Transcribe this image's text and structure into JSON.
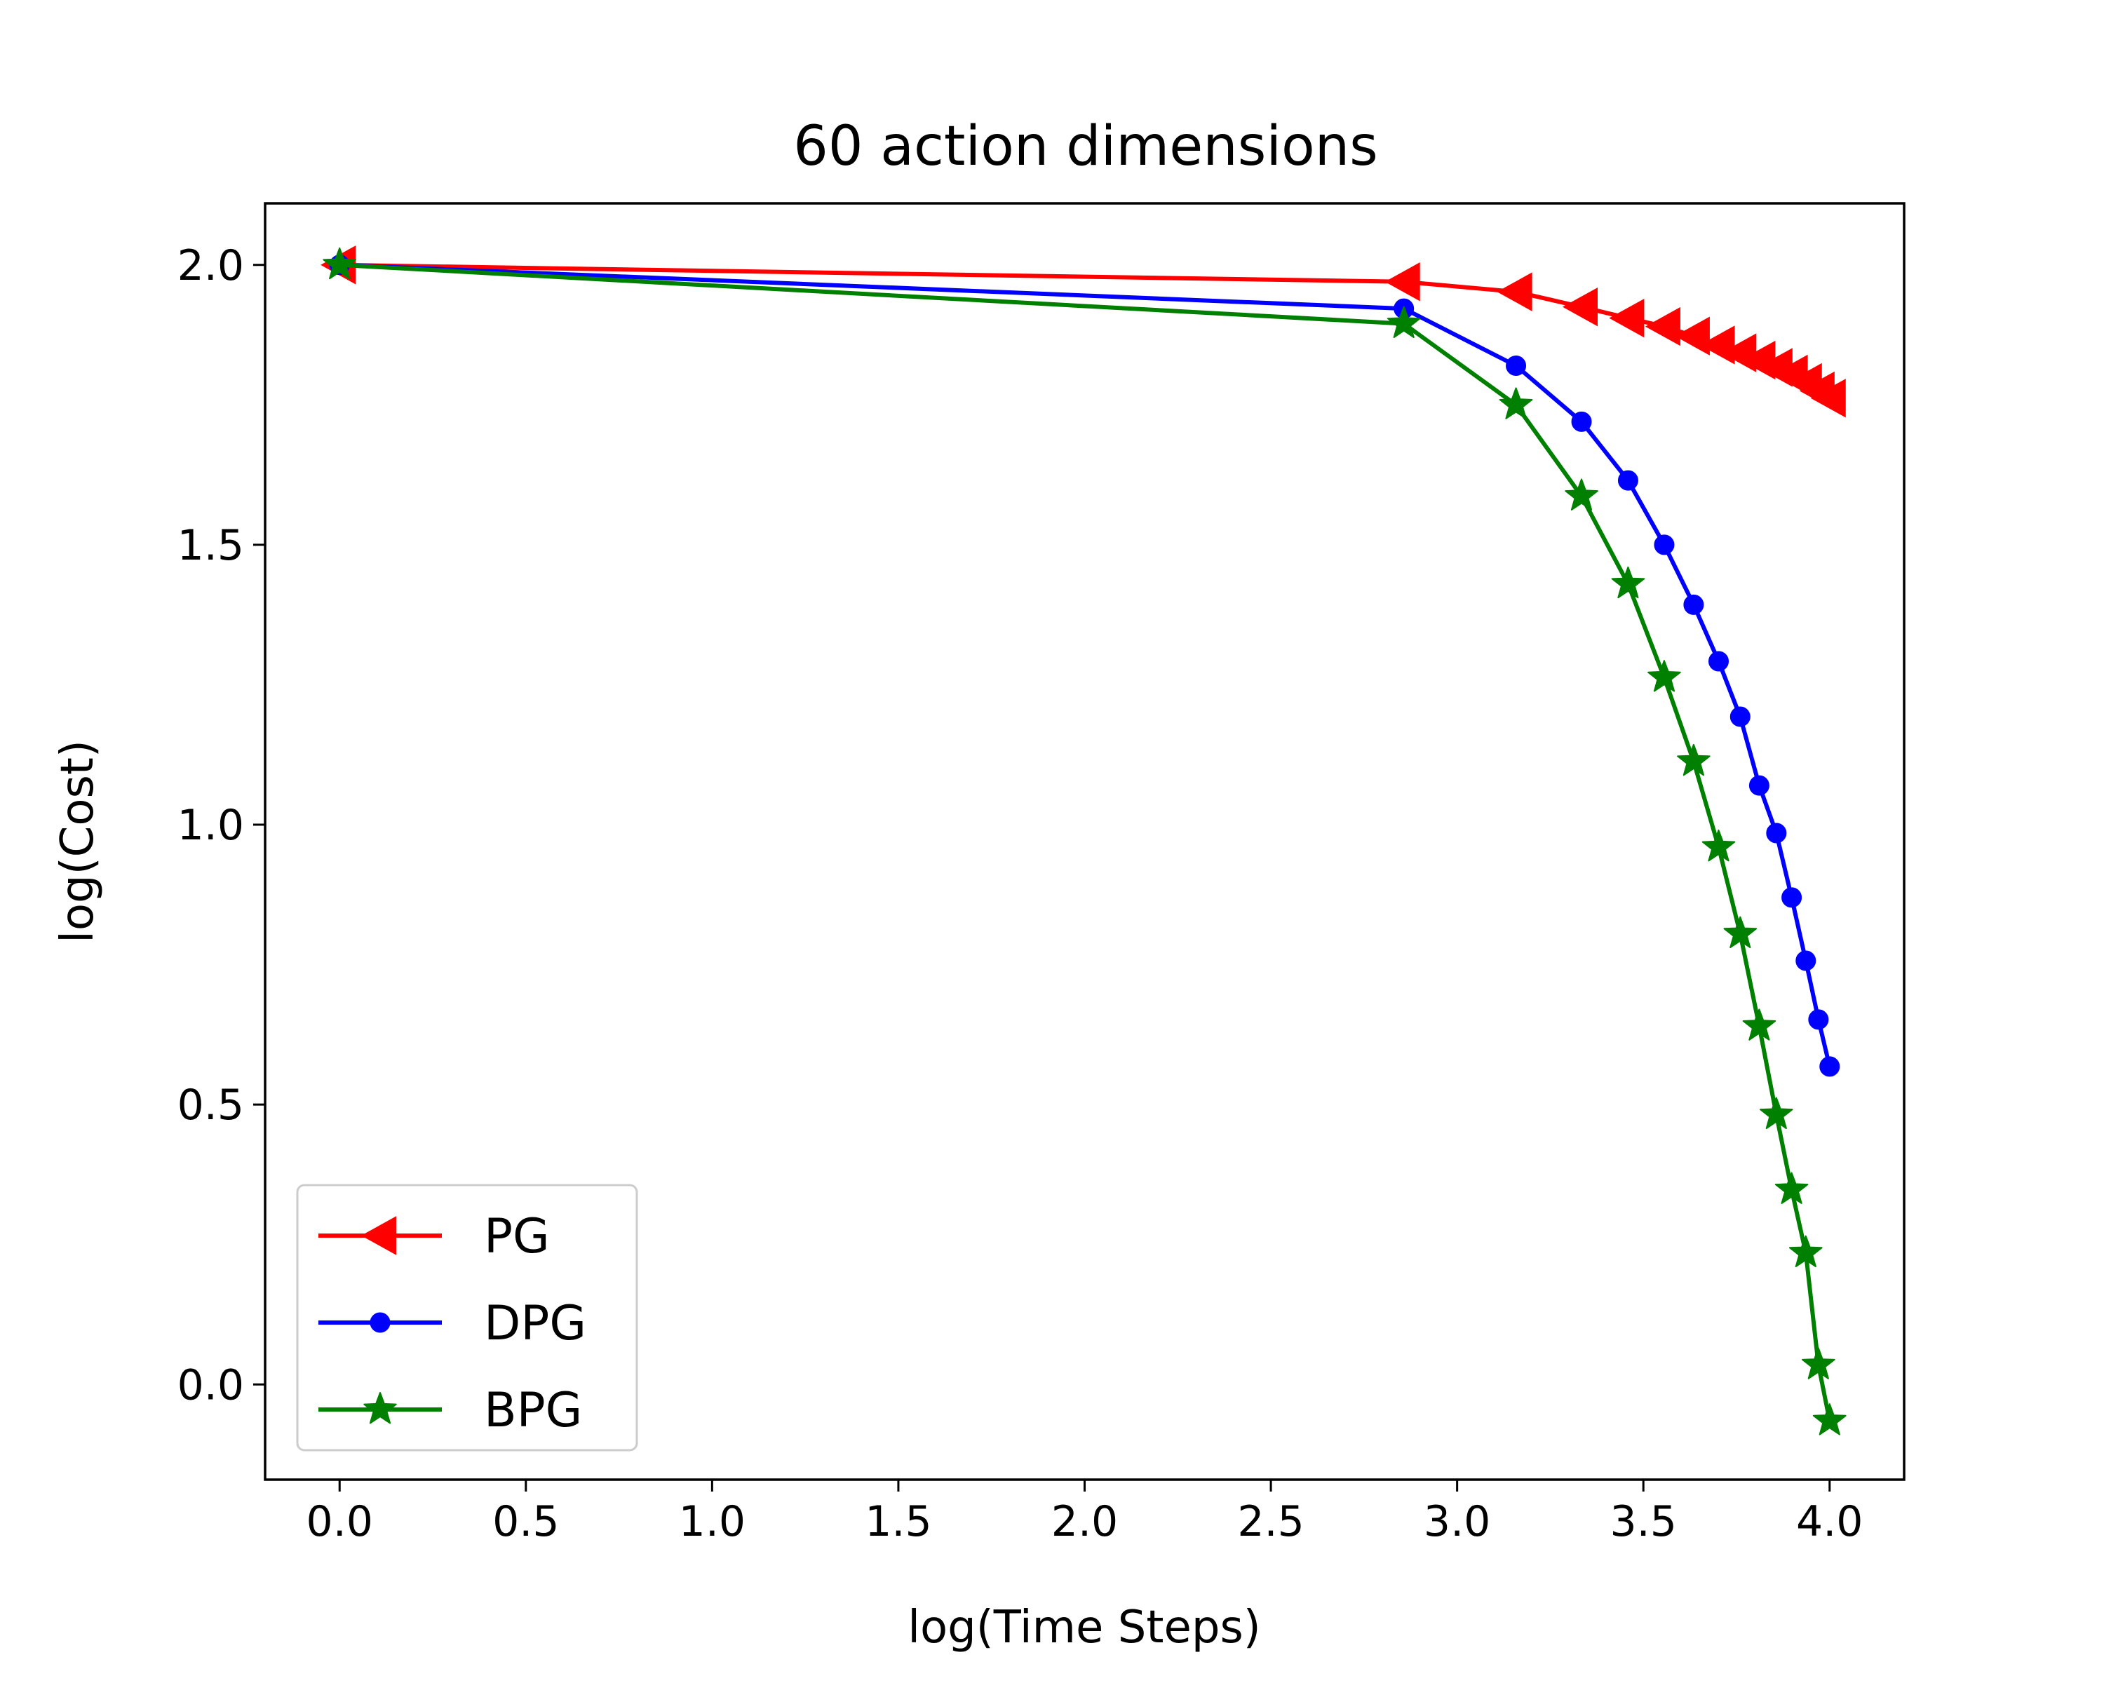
{
  "chart_data": {
    "type": "line",
    "title": "60 action dimensions",
    "xlabel": "log(Time Steps)",
    "ylabel": "log(Cost)",
    "xlim": [
      -0.2,
      4.2
    ],
    "ylim": [
      -0.17,
      2.11
    ],
    "xticks": [
      "0.0",
      "0.5",
      "1.0",
      "1.5",
      "2.0",
      "2.5",
      "3.0",
      "3.5",
      "4.0"
    ],
    "yticks": [
      "0.0",
      "0.5",
      "1.0",
      "1.5",
      "2.0"
    ],
    "grid": false,
    "legend_position": "lower-left",
    "series": [
      {
        "name": "PG",
        "color": "#ff0000",
        "marker": "triangle-left",
        "x": [
          0.0,
          2.857,
          3.158,
          3.334,
          3.459,
          3.556,
          3.635,
          3.702,
          3.76,
          3.811,
          3.857,
          3.898,
          3.936,
          3.97,
          4.0
        ],
        "y": [
          2.0,
          1.97,
          1.952,
          1.925,
          1.905,
          1.89,
          1.873,
          1.857,
          1.843,
          1.83,
          1.817,
          1.805,
          1.79,
          1.775,
          1.762
        ]
      },
      {
        "name": "DPG",
        "color": "#0000ff",
        "marker": "dot",
        "x": [
          0.0,
          2.857,
          3.158,
          3.334,
          3.459,
          3.556,
          3.635,
          3.702,
          3.76,
          3.811,
          3.857,
          3.898,
          3.936,
          3.97,
          4.0
        ],
        "y": [
          2.0,
          1.922,
          1.82,
          1.72,
          1.615,
          1.5,
          1.393,
          1.292,
          1.193,
          1.07,
          0.985,
          0.87,
          0.757,
          0.652,
          0.568
        ]
      },
      {
        "name": "BPG",
        "color": "#008000",
        "marker": "star",
        "x": [
          0.0,
          2.857,
          3.158,
          3.334,
          3.459,
          3.556,
          3.635,
          3.702,
          3.76,
          3.811,
          3.857,
          3.898,
          3.936,
          3.97,
          4.0
        ],
        "y": [
          2.0,
          1.895,
          1.75,
          1.587,
          1.43,
          1.263,
          1.113,
          0.96,
          0.805,
          0.64,
          0.482,
          0.348,
          0.235,
          0.035,
          -0.065
        ]
      }
    ]
  }
}
